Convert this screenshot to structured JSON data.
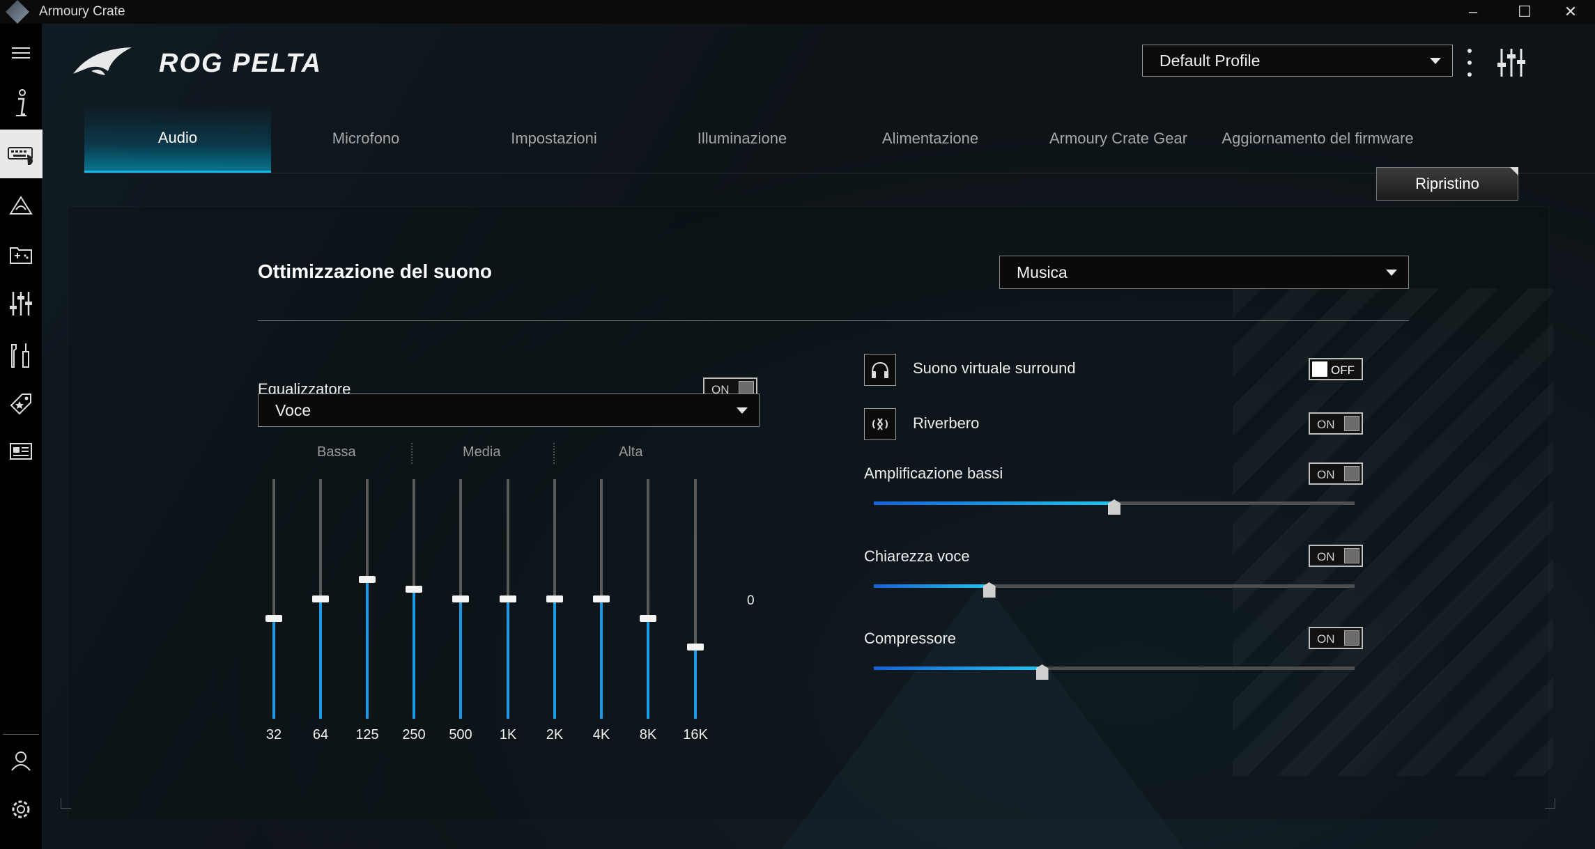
{
  "window": {
    "title": "Armoury Crate",
    "minimize": "–",
    "maximize": "☐",
    "close": "✕"
  },
  "sidebar": {
    "items": [
      {
        "name": "menu-icon"
      },
      {
        "name": "info-icon"
      },
      {
        "name": "device-icon",
        "active": true
      },
      {
        "name": "aura-icon"
      },
      {
        "name": "game-library-icon"
      },
      {
        "name": "settings-sliders-icon"
      },
      {
        "name": "tools-icon"
      },
      {
        "name": "deals-tag-icon"
      },
      {
        "name": "news-icon"
      },
      {
        "name": "user-account-icon"
      },
      {
        "name": "app-settings-icon"
      }
    ]
  },
  "header": {
    "device_name": "ROG PELTA",
    "profile": "Default Profile"
  },
  "tabs": [
    {
      "label": "Audio",
      "active": true
    },
    {
      "label": "Microfono"
    },
    {
      "label": "Impostazioni"
    },
    {
      "label": "Illuminazione"
    },
    {
      "label": "Alimentazione"
    },
    {
      "label": "Armoury Crate Gear"
    },
    {
      "label": "Aggiornamento del firmware"
    }
  ],
  "reset_label": "Ripristino",
  "sound": {
    "title": "Ottimizzazione del suono",
    "mode": "Musica"
  },
  "equalizer": {
    "label": "Equalizzatore",
    "state": "ON",
    "preset": "Voce",
    "bands": {
      "low": "Bassa",
      "mid": "Media",
      "high": "Alta"
    },
    "zero_label": "0",
    "freqs": [
      "32",
      "64",
      "125",
      "250",
      "500",
      "1K",
      "2K",
      "4K",
      "8K",
      "16K"
    ],
    "levels": [
      0.42,
      0.5,
      0.58,
      0.54,
      0.5,
      0.5,
      0.5,
      0.5,
      0.42,
      0.3
    ]
  },
  "features": {
    "surround": {
      "label": "Suono virtuale surround",
      "state": "OFF"
    },
    "reverb": {
      "label": "Riverbero",
      "state": "ON"
    },
    "bass": {
      "label": "Amplificazione bassi",
      "state": "ON",
      "value": 0.5
    },
    "voice": {
      "label": "Chiarezza voce",
      "state": "ON",
      "value": 0.24
    },
    "compressor": {
      "label": "Compressore",
      "state": "ON",
      "value": 0.35
    }
  },
  "colors": {
    "accent": "#1b9ae6",
    "tab_highlight": "#16b6e8"
  }
}
